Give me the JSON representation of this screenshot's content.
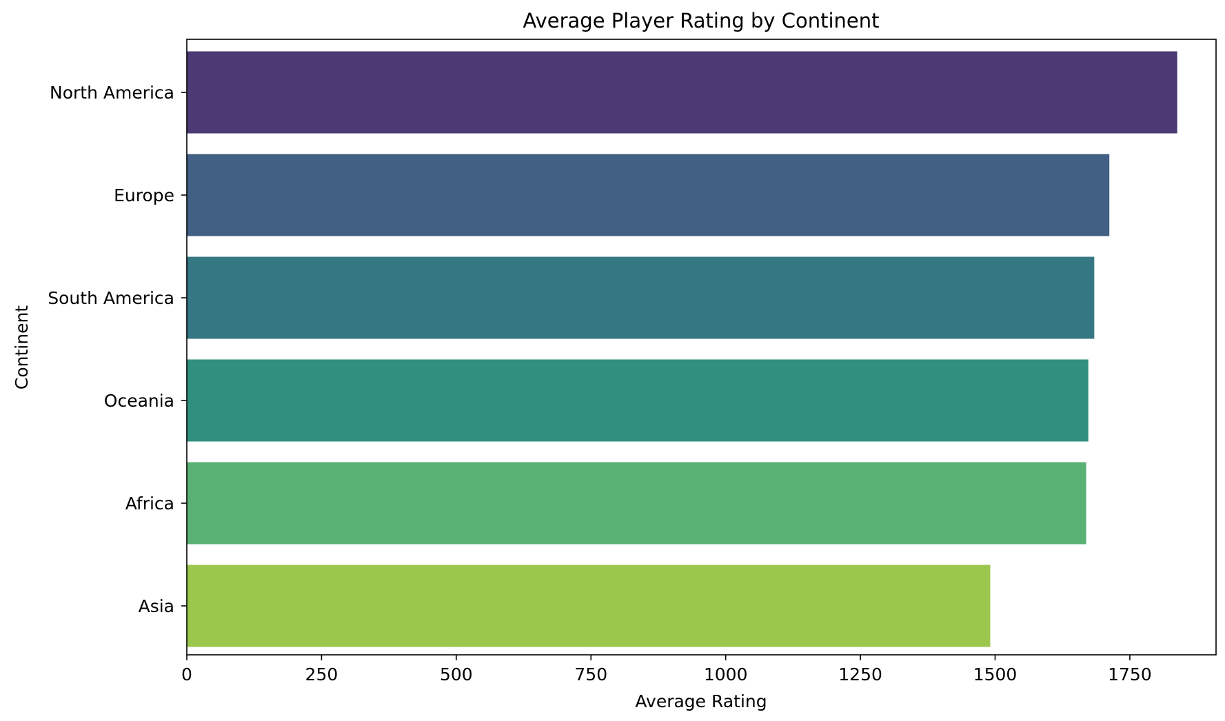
{
  "chart_data": {
    "type": "bar",
    "orientation": "horizontal",
    "title": "Average Player Rating by Continent",
    "xlabel": "Average Rating",
    "ylabel": "Continent",
    "categories": [
      "North America",
      "Europe",
      "South America",
      "Oceania",
      "Africa",
      "Asia"
    ],
    "values": [
      1838,
      1712,
      1684,
      1673,
      1669,
      1491
    ],
    "colors": [
      "#4b3a73",
      "#425f84",
      "#357782",
      "#318f7f",
      "#5ab174",
      "#9bc74c"
    ],
    "xlim": [
      0,
      1910
    ],
    "xticks": [
      0,
      250,
      500,
      750,
      1000,
      1250,
      1500,
      1750
    ],
    "xtick_labels": [
      "0",
      "250",
      "500",
      "750",
      "1000",
      "1250",
      "1500",
      "1750"
    ],
    "grid": false,
    "legend": "none"
  }
}
